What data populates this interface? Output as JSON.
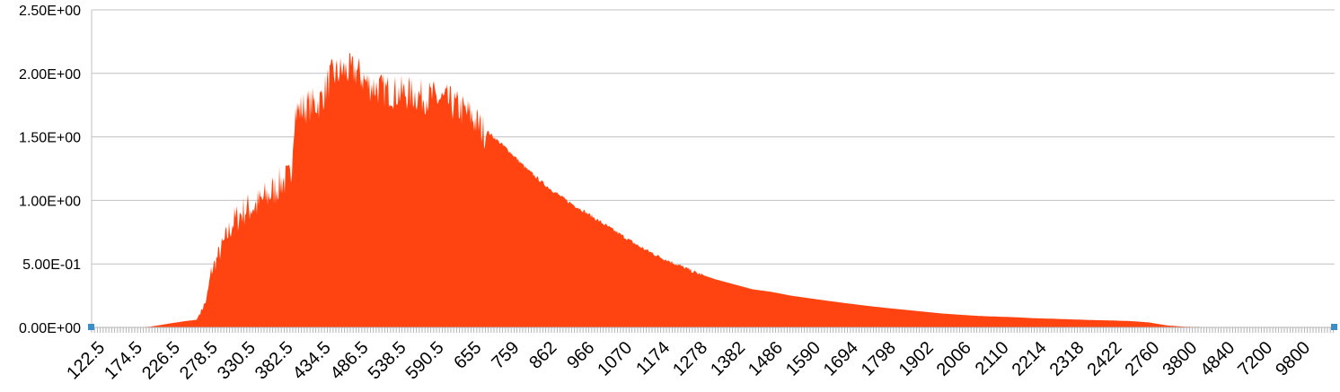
{
  "chart_data": {
    "type": "area",
    "title": "",
    "xlabel": "",
    "ylabel": "",
    "fill_color": "#ff4411",
    "handle_color": "#3c8ec9",
    "grid": true,
    "ylim": [
      0,
      2.5
    ],
    "yticks": [
      {
        "value": 0,
        "label": "0.00E+00"
      },
      {
        "value": 0.5,
        "label": "5.00E-01"
      },
      {
        "value": 1.0,
        "label": "1.00E+00"
      },
      {
        "value": 1.5,
        "label": "1.50E+00"
      },
      {
        "value": 2.0,
        "label": "2.00E+00"
      },
      {
        "value": 2.5,
        "label": "2.50E+00"
      }
    ],
    "categories_count": 1000,
    "xtick_labels": [
      "122.5",
      "174.5",
      "226.5",
      "278.5",
      "330.5",
      "382.5",
      "434.5",
      "486.5",
      "538.5",
      "590.5",
      "655",
      "759",
      "862",
      "966",
      "1070",
      "1174",
      "1278",
      "1382",
      "1486",
      "1590",
      "1694",
      "1798",
      "1902",
      "2006",
      "2110",
      "2214",
      "2318",
      "2422",
      "2760",
      "3800",
      "4840",
      "7200",
      "9800"
    ],
    "series": [
      {
        "x": [
          122.5,
          174.5,
          200,
          226.5,
          250,
          265,
          278.5,
          285,
          300,
          315,
          330.5,
          350,
          360,
          370,
          382.5,
          395,
          400,
          410,
          420,
          434.5,
          450,
          465,
          486.5,
          500,
          520,
          538.5,
          560,
          575,
          590.5,
          620,
          655,
          700,
          759,
          810,
          862,
          920,
          966,
          1020,
          1070,
          1120,
          1174,
          1230,
          1278,
          1330,
          1382,
          1434,
          1486,
          1540,
          1590,
          1640,
          1694,
          1750,
          1798,
          1850,
          1902,
          1955,
          2006,
          2060,
          2110,
          2160,
          2214,
          2266,
          2318,
          2370,
          2422,
          2600,
          2760,
          3300,
          3800,
          4840,
          7200,
          9800
        ],
        "values": [
          0.0,
          0.0,
          0.005,
          0.03,
          0.05,
          0.06,
          0.22,
          0.45,
          0.65,
          0.85,
          0.95,
          1.0,
          1.05,
          1.1,
          1.18,
          1.2,
          1.72,
          1.75,
          1.78,
          1.8,
          2.0,
          2.05,
          2.05,
          1.95,
          1.9,
          1.88,
          1.87,
          1.85,
          1.84,
          1.8,
          1.7,
          1.55,
          1.4,
          1.25,
          1.12,
          1.0,
          0.92,
          0.82,
          0.73,
          0.64,
          0.56,
          0.49,
          0.43,
          0.38,
          0.34,
          0.3,
          0.28,
          0.25,
          0.23,
          0.21,
          0.19,
          0.17,
          0.155,
          0.14,
          0.125,
          0.11,
          0.1,
          0.09,
          0.085,
          0.08,
          0.072,
          0.068,
          0.063,
          0.058,
          0.055,
          0.05,
          0.04,
          0.015,
          0.005,
          0.002,
          0.0,
          0.0
        ]
      }
    ]
  }
}
